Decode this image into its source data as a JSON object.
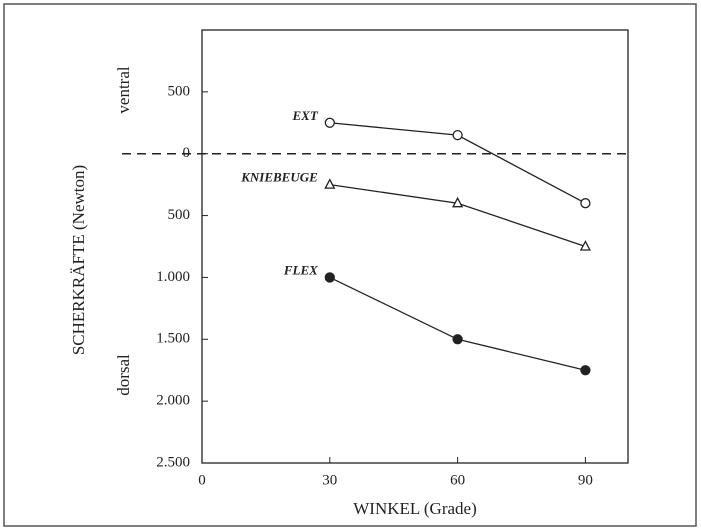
{
  "chart_data": {
    "type": "line",
    "y_label": "SCHERKRÄFTE (Newton)",
    "x_label": "WINKEL (Grade)",
    "y_annotations": {
      "top": "ventral",
      "bottom": "dorsal"
    },
    "x": [
      30,
      60,
      90
    ],
    "series": [
      {
        "name": "EXT",
        "color": "#222222",
        "marker": "open-circle",
        "values": [
          250,
          150,
          -400
        ]
      },
      {
        "name": "KNIEBEUGE",
        "color": "#222222",
        "marker": "open-triangle",
        "values": [
          -250,
          -400,
          -750
        ]
      },
      {
        "name": "FLEX",
        "color": "#222222",
        "marker": "filled-circle",
        "values": [
          -1000,
          -1500,
          -1750
        ]
      }
    ],
    "xlim": [
      0,
      100
    ],
    "xticks": [
      0,
      30,
      60,
      90
    ],
    "ylim": [
      -2500,
      1000
    ],
    "yticks": [
      500,
      0,
      {
        "value": -500,
        "label": "500"
      },
      {
        "value": -1000,
        "label": "1.000"
      },
      {
        "value": -1500,
        "label": "1.500"
      },
      {
        "value": -2000,
        "label": "2.000"
      },
      {
        "value": -2500,
        "label": "2.500"
      }
    ],
    "zero_line": "dashed"
  }
}
